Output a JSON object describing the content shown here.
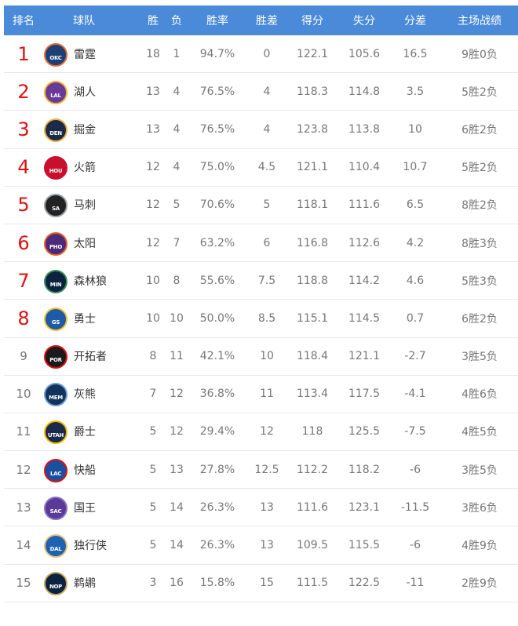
{
  "header": {
    "rank": "排名",
    "team": "球队",
    "w": "胜",
    "l": "负",
    "pct": "胜率",
    "gb": "胜差",
    "pf": "得分",
    "pa": "失分",
    "diff": "分差",
    "home": "主场战绩"
  },
  "colors": {
    "header_bg": "#4a8ad8",
    "top8_rank": "#dd1111"
  },
  "rows": [
    {
      "rank": "1",
      "abbr": "OKC",
      "team": "雷霆",
      "w": "18",
      "l": "1",
      "pct": "94.7%",
      "gb": "0",
      "pf": "122.1",
      "pa": "105.6",
      "diff": "16.5",
      "home": "9胜0负",
      "c1": "#1d3f73",
      "c2": "#e06a3c"
    },
    {
      "rank": "2",
      "abbr": "LAL",
      "team": "湖人",
      "w": "13",
      "l": "4",
      "pct": "76.5%",
      "gb": "4",
      "pf": "118.3",
      "pa": "114.8",
      "diff": "3.5",
      "home": "5胜2负",
      "c1": "#6a3a9a",
      "c2": "#f2b630"
    },
    {
      "rank": "3",
      "abbr": "DEN",
      "team": "掘金",
      "w": "13",
      "l": "4",
      "pct": "76.5%",
      "gb": "4",
      "pf": "123.8",
      "pa": "113.8",
      "diff": "10",
      "home": "6胜2负",
      "c1": "#1b2a4a",
      "c2": "#e7b53a"
    },
    {
      "rank": "4",
      "abbr": "HOU",
      "team": "火箭",
      "w": "12",
      "l": "4",
      "pct": "75.0%",
      "gb": "4.5",
      "pf": "121.1",
      "pa": "110.4",
      "diff": "10.7",
      "home": "5胜2负",
      "c1": "#c8102e",
      "c2": "#c8102e"
    },
    {
      "rank": "5",
      "abbr": "SA",
      "team": "马刺",
      "w": "12",
      "l": "5",
      "pct": "70.6%",
      "gb": "5",
      "pf": "118.1",
      "pa": "111.6",
      "diff": "6.5",
      "home": "8胜2负",
      "c1": "#222222",
      "c2": "#9aa0a6"
    },
    {
      "rank": "6",
      "abbr": "PHO",
      "team": "太阳",
      "w": "12",
      "l": "7",
      "pct": "63.2%",
      "gb": "6",
      "pf": "116.8",
      "pa": "112.6",
      "diff": "4.2",
      "home": "8胜3负",
      "c1": "#4b2a7a",
      "c2": "#e56020"
    },
    {
      "rank": "7",
      "abbr": "MIN",
      "team": "森林狼",
      "w": "10",
      "l": "8",
      "pct": "55.6%",
      "gb": "7.5",
      "pf": "118.8",
      "pa": "114.2",
      "diff": "4.6",
      "home": "5胜3负",
      "c1": "#0c2340",
      "c2": "#3e8e5e"
    },
    {
      "rank": "8",
      "abbr": "GS",
      "team": "勇士",
      "w": "10",
      "l": "10",
      "pct": "50.0%",
      "gb": "8.5",
      "pf": "115.1",
      "pa": "114.5",
      "diff": "0.7",
      "home": "6胜2负",
      "c1": "#1d5aa8",
      "c2": "#f5c030"
    },
    {
      "rank": "9",
      "abbr": "POR",
      "team": "开拓者",
      "w": "8",
      "l": "11",
      "pct": "42.1%",
      "gb": "10",
      "pf": "118.4",
      "pa": "121.1",
      "diff": "-2.7",
      "home": "3胜5负",
      "c1": "#1a1a1a",
      "c2": "#d11"
    },
    {
      "rank": "10",
      "abbr": "MEM",
      "team": "灰熊",
      "w": "7",
      "l": "12",
      "pct": "36.8%",
      "gb": "11",
      "pf": "113.4",
      "pa": "117.5",
      "diff": "-4.1",
      "home": "4胜6负",
      "c1": "#12315c",
      "c2": "#6d9bd1"
    },
    {
      "rank": "11",
      "abbr": "UTAH",
      "team": "爵士",
      "w": "5",
      "l": "12",
      "pct": "29.4%",
      "gb": "12",
      "pf": "118",
      "pa": "125.5",
      "diff": "-7.5",
      "home": "4胜5负",
      "c1": "#1a2a4a",
      "c2": "#f5b800"
    },
    {
      "rank": "12",
      "abbr": "LAC",
      "team": "快船",
      "w": "5",
      "l": "13",
      "pct": "27.8%",
      "gb": "12.5",
      "pf": "112.2",
      "pa": "118.2",
      "diff": "-6",
      "home": "3胜5负",
      "c1": "#1d4fa0",
      "c2": "#d11"
    },
    {
      "rank": "13",
      "abbr": "SAC",
      "team": "国王",
      "w": "5",
      "l": "14",
      "pct": "26.3%",
      "gb": "13",
      "pf": "111.6",
      "pa": "123.1",
      "diff": "-11.5",
      "home": "3胜6负",
      "c1": "#5a3a99",
      "c2": "#8a70c0"
    },
    {
      "rank": "14",
      "abbr": "DAL",
      "team": "独行侠",
      "w": "5",
      "l": "14",
      "pct": "26.3%",
      "gb": "13",
      "pf": "109.5",
      "pa": "115.5",
      "diff": "-6",
      "home": "4胜9负",
      "c1": "#1f63b0",
      "c2": "#e9c07a"
    },
    {
      "rank": "15",
      "abbr": "NOP",
      "team": "鹈鹕",
      "w": "3",
      "l": "16",
      "pct": "15.8%",
      "gb": "15",
      "pf": "111.5",
      "pa": "122.5",
      "diff": "-11",
      "home": "2胜9负",
      "c1": "#0c2340",
      "c2": "#c8a45c"
    }
  ]
}
